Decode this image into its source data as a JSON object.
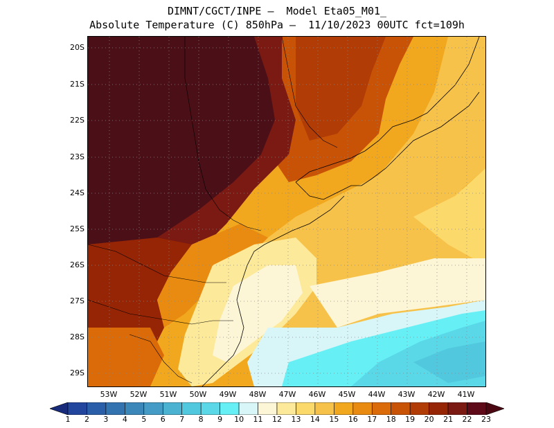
{
  "header": {
    "line1": "DIMNT/CGCT/INPE –  Model Eta05_M01_",
    "line2": "Absolute Temperature (C) 850hPa –  11/10/2023 00UTC fct=109h"
  },
  "axes": {
    "lat_labels": [
      "20S",
      "21S",
      "22S",
      "23S",
      "24S",
      "25S",
      "26S",
      "27S",
      "28S",
      "29S"
    ],
    "lon_labels": [
      "53W",
      "52W",
      "51W",
      "50W",
      "49W",
      "48W",
      "47W",
      "46W",
      "45W",
      "44W",
      "43W",
      "42W",
      "41W"
    ]
  },
  "colorbar": {
    "labels": [
      "1",
      "2",
      "3",
      "4",
      "5",
      "6",
      "7",
      "8",
      "9",
      "10",
      "11",
      "12",
      "13",
      "14",
      "15",
      "16",
      "17",
      "18",
      "19",
      "20",
      "21",
      "22",
      "23"
    ],
    "colors": [
      "#1e2f8c",
      "#22469e",
      "#2a5ea8",
      "#3374b0",
      "#3b87ba",
      "#449cc6",
      "#4bb2d2",
      "#52c8df",
      "#5ad8e7",
      "#66f0f5",
      "#d8f6f7",
      "#fdf6d6",
      "#fde99a",
      "#fbd96a",
      "#f7c24a",
      "#f1a71e",
      "#e88b10",
      "#db6b08",
      "#c85306",
      "#b13c05",
      "#952504",
      "#7a1a12",
      "#5f0a18"
    ],
    "low_arrow": "#182a7a",
    "high_arrow": "#4b0813"
  },
  "map": {
    "background": "#f5d99a",
    "grid": "dotted",
    "lon_range": [
      -53.7,
      -40.5
    ],
    "lat_range": [
      -29.5,
      -19.9
    ]
  }
}
